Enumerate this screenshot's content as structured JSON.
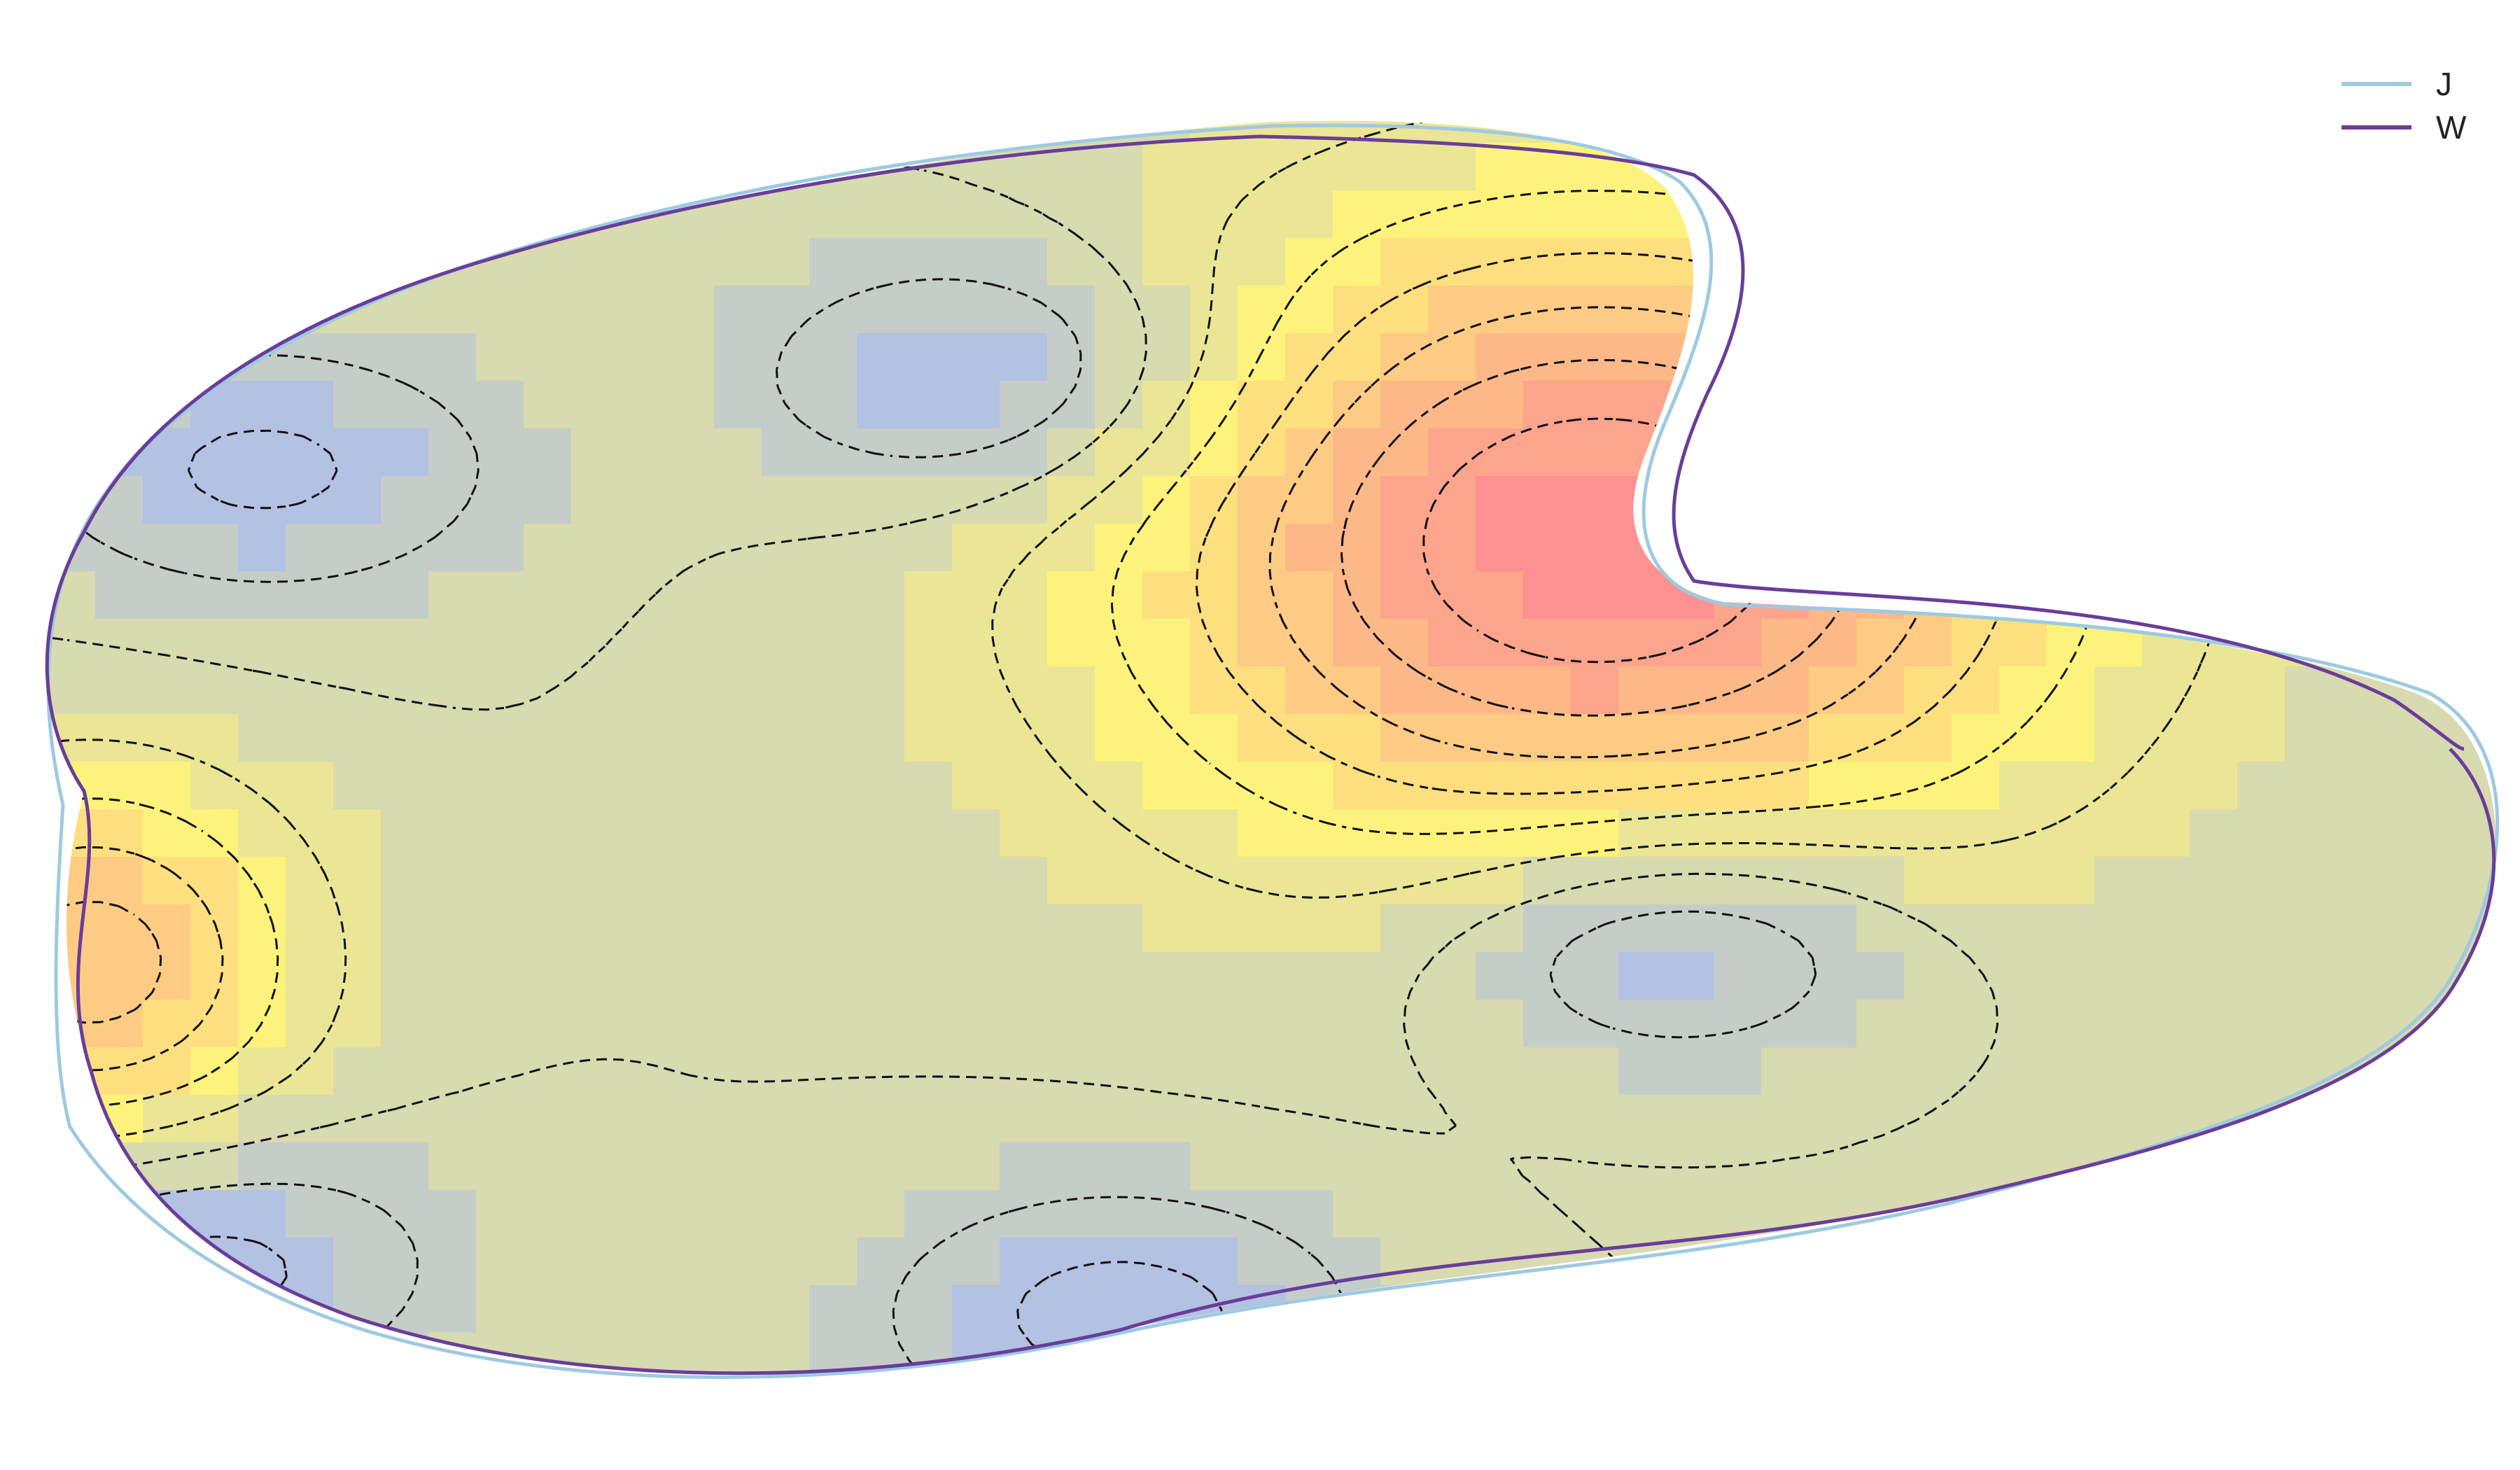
{
  "chart_data": {
    "type": "heatmap",
    "title": "",
    "xlabel": "",
    "ylabel": "",
    "axes_visible": false,
    "grid": false,
    "legend_position": "top-right",
    "color_scale": {
      "low": "#a0b4fc",
      "mid": "#fdf37c",
      "high": "#fd9090",
      "range": [
        0,
        1
      ]
    },
    "field_peaks": [
      {
        "kind": "maximum",
        "x": 0.635,
        "y": 0.665,
        "value": 1.0
      },
      {
        "kind": "maximum",
        "x": 0.02,
        "y": 0.34,
        "value": 0.75
      },
      {
        "kind": "minimum",
        "x": 0.39,
        "y": 0.79,
        "value": 0.03
      },
      {
        "kind": "minimum",
        "x": 0.665,
        "y": 0.36,
        "value": 0.02
      },
      {
        "kind": "minimum",
        "x": 0.06,
        "y": 0.11,
        "value": 0.05
      },
      {
        "kind": "minimum",
        "x": 0.44,
        "y": 0.07,
        "value": 0.06
      },
      {
        "kind": "minimum",
        "x": 0.09,
        "y": 0.72,
        "value": 0.08
      }
    ],
    "contour_style": "dashed",
    "series": [
      {
        "name": "J",
        "color": "#9ecae1"
      },
      {
        "name": "W",
        "color": "#6a3d9a"
      }
    ]
  }
}
